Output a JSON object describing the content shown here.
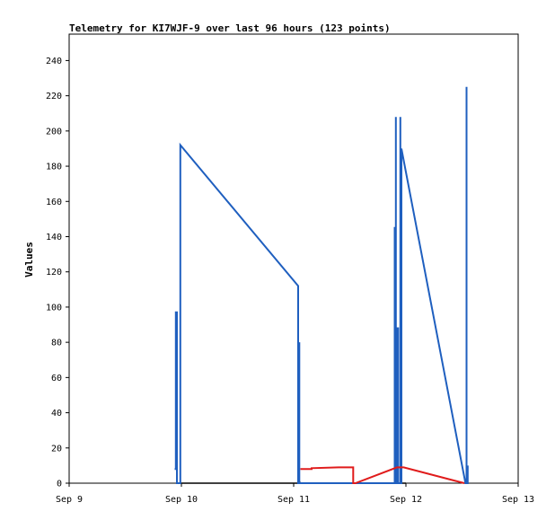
{
  "chart_data": {
    "type": "line",
    "title": "Telemetry for KI7WJF-9 over last 96 hours (123 points)",
    "ylabel": "Values",
    "xlabel": "",
    "x_tick_labels": [
      "Sep 9",
      "Sep 10",
      "Sep 11",
      "Sep 12",
      "Sep 13"
    ],
    "x_tick_values": [
      0,
      1,
      2,
      3,
      4
    ],
    "xlim": [
      0,
      4
    ],
    "y_tick_values": [
      0,
      20,
      40,
      60,
      80,
      100,
      120,
      140,
      160,
      180,
      200,
      220,
      240
    ],
    "ylim": [
      0,
      255
    ],
    "grid": false,
    "series": [
      {
        "color": "#000000",
        "points": [
          [
            0.96,
            0
          ],
          [
            2.05,
            0
          ],
          [
            2.05,
            1
          ],
          [
            2.06,
            0
          ],
          [
            2.55,
            0
          ],
          [
            3.0,
            0
          ]
        ]
      },
      {
        "color": "#1f5fbf",
        "points": [
          [
            0.94,
            8
          ],
          [
            0.95,
            8
          ],
          [
            0.95,
            97
          ],
          [
            0.96,
            97
          ],
          [
            0.96,
            0
          ],
          [
            0.99,
            0
          ],
          [
            0.99,
            192
          ],
          [
            2.04,
            112
          ],
          [
            2.04,
            0
          ],
          [
            2.05,
            0
          ],
          [
            2.05,
            80
          ],
          [
            2.05,
            0
          ],
          [
            2.9,
            0
          ],
          [
            2.9,
            145
          ],
          [
            2.91,
            145
          ],
          [
            2.91,
            208
          ],
          [
            2.91,
            0
          ],
          [
            2.92,
            0
          ],
          [
            2.92,
            88
          ],
          [
            2.93,
            88
          ],
          [
            2.93,
            0
          ],
          [
            2.95,
            0
          ],
          [
            2.95,
            208
          ],
          [
            2.95,
            0
          ],
          [
            2.96,
            0
          ],
          [
            2.96,
            190
          ],
          [
            3.53,
            0
          ],
          [
            3.54,
            0
          ],
          [
            3.54,
            225
          ],
          [
            3.54,
            0
          ],
          [
            3.55,
            0
          ],
          [
            3.55,
            10
          ],
          [
            3.55,
            0
          ]
        ]
      },
      {
        "color": "#e01b1b",
        "points": [
          [
            2.06,
            8
          ],
          [
            2.16,
            8
          ],
          [
            2.16,
            8.5
          ],
          [
            2.4,
            9
          ],
          [
            2.53,
            9
          ],
          [
            2.53,
            0
          ],
          [
            2.55,
            0
          ],
          [
            2.92,
            9
          ],
          [
            2.98,
            9
          ],
          [
            3.52,
            0
          ]
        ]
      }
    ]
  }
}
